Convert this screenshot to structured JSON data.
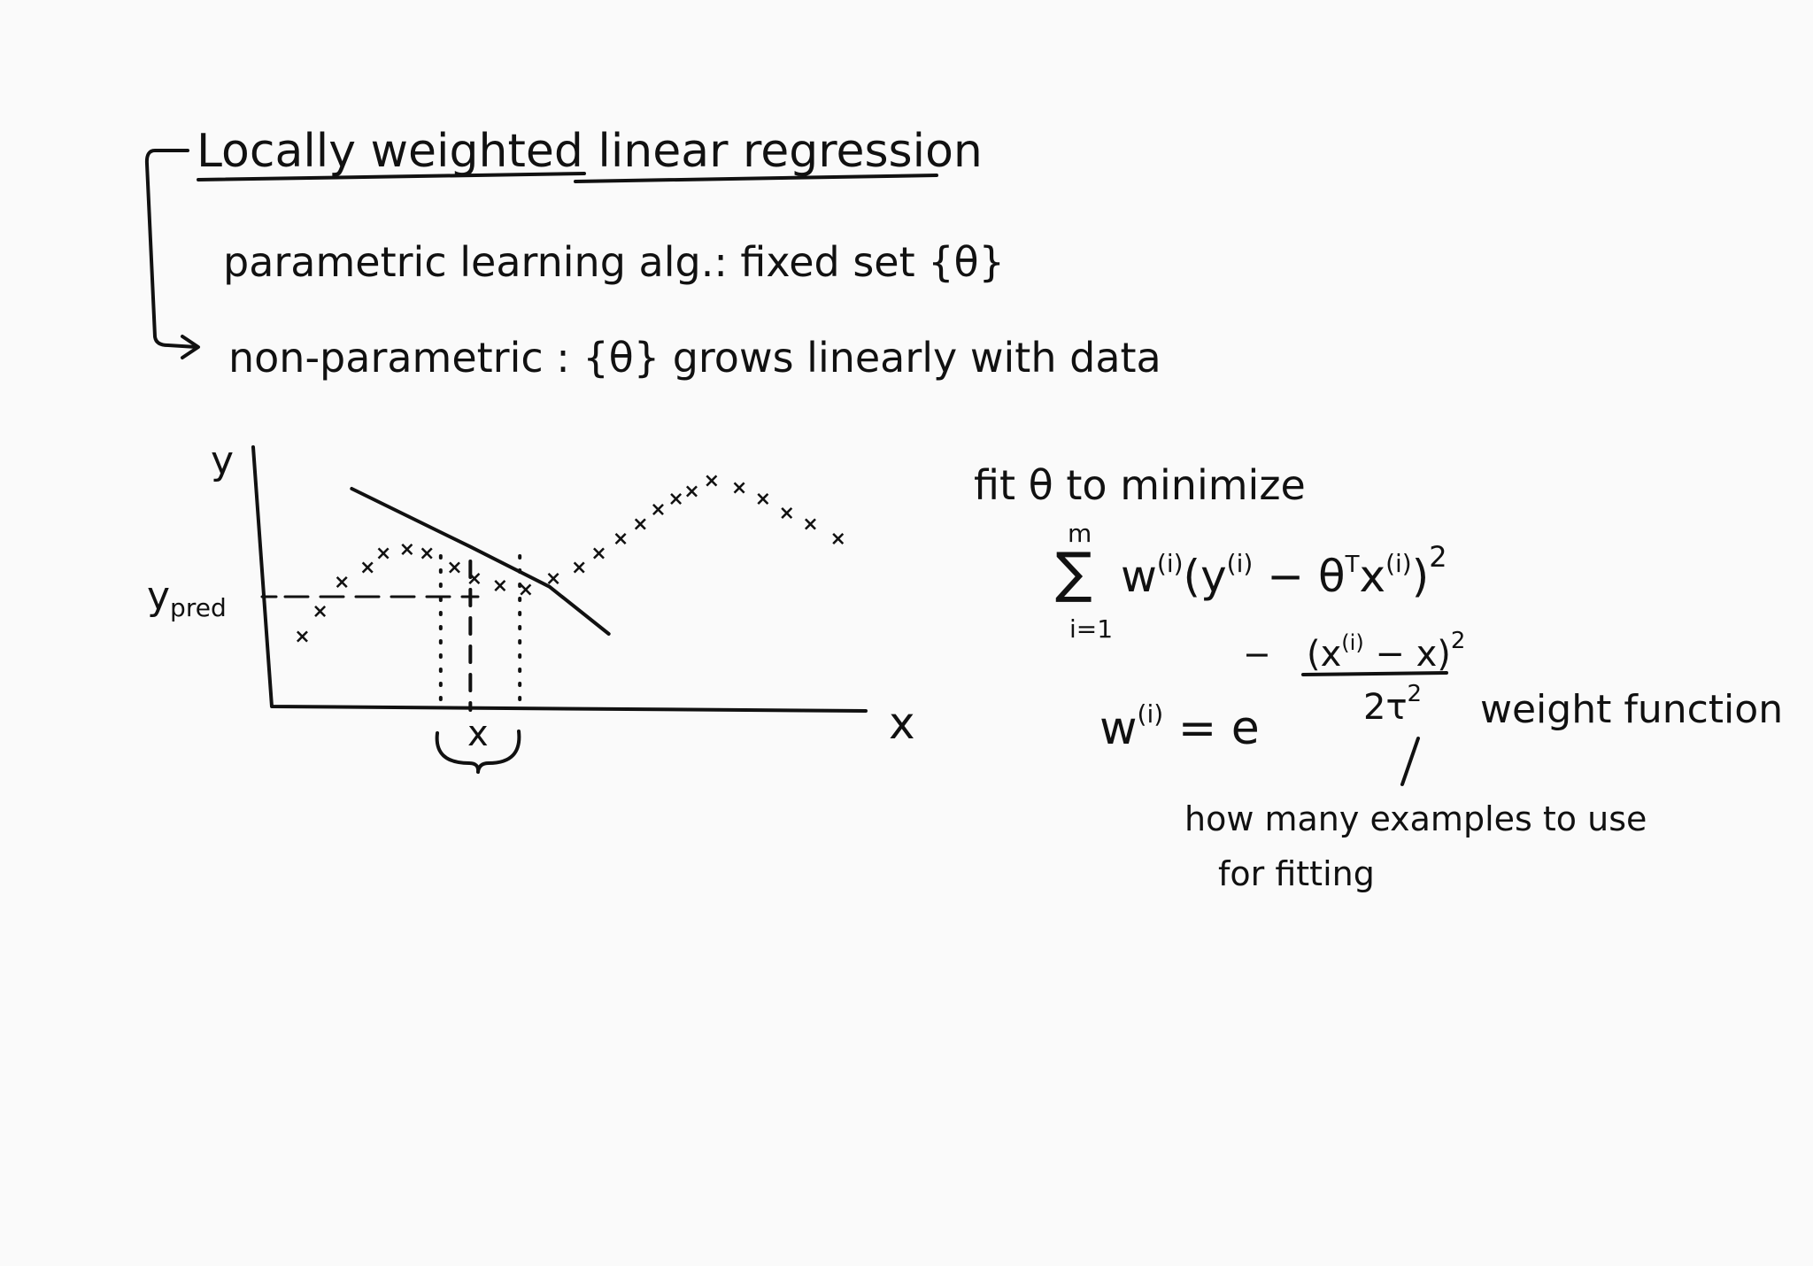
{
  "notes": {
    "title": "Locally weighted linear regression",
    "parametric": "parametric learning alg.: fixed set {θ}",
    "nonparametric": "non-parametric : {θ} grows linearly with data"
  },
  "plot": {
    "y_label": "y",
    "x_label": "x",
    "ypred_label": "y",
    "ypred_subscript": "pred",
    "query_label": "x"
  },
  "chart_data": {
    "type": "scatter",
    "title": "",
    "xlabel": "x",
    "ylabel": "y",
    "points": [
      [
        0.15,
        0.38
      ],
      [
        0.24,
        0.52
      ],
      [
        0.35,
        0.68
      ],
      [
        0.48,
        0.76
      ],
      [
        0.56,
        0.84
      ],
      [
        0.68,
        0.86
      ],
      [
        0.78,
        0.84
      ],
      [
        0.92,
        0.76
      ],
      [
        1.02,
        0.7
      ],
      [
        1.15,
        0.66
      ],
      [
        1.28,
        0.64
      ],
      [
        1.42,
        0.7
      ],
      [
        1.55,
        0.76
      ],
      [
        1.65,
        0.84
      ],
      [
        1.76,
        0.92
      ],
      [
        1.86,
        1.0
      ],
      [
        1.95,
        1.08
      ],
      [
        2.04,
        1.14
      ],
      [
        2.12,
        1.18
      ],
      [
        2.22,
        1.24
      ],
      [
        2.36,
        1.2
      ],
      [
        2.48,
        1.14
      ],
      [
        2.6,
        1.06
      ],
      [
        2.72,
        1.0
      ],
      [
        2.86,
        0.92
      ]
    ],
    "local_fit_line": [
      [
        0.4,
        1.2
      ],
      [
        1.0,
        0.88
      ],
      [
        1.4,
        0.66
      ],
      [
        1.7,
        0.4
      ]
    ],
    "query_x": 1.0,
    "weight_window": [
      0.85,
      1.25
    ],
    "ypred": 0.8
  },
  "formula": {
    "intro": "fit θ to minimize",
    "sum_upper": "m",
    "sum_lower": "i=1",
    "objective": "w",
    "obj_sup": "(i)",
    "obj_paren_open": "(",
    "obj_y": "y",
    "obj_y_sup": "(i)",
    "obj_minus": " − θ",
    "obj_theta_sup": "T",
    "obj_x": "x",
    "obj_x_sup": "(i)",
    "obj_paren_close": ")",
    "obj_power": "2",
    "weight_lhs": "w",
    "weight_lhs_sup": "(i)",
    "weight_eq": " = e",
    "exp_minus": "−",
    "exp_num": "(x",
    "exp_num_sup": "(i)",
    "exp_num_end": " − x)",
    "exp_num_pow": "2",
    "exp_den": "2τ",
    "exp_den_pow": "2",
    "weight_label": "weight function",
    "tau_note_1": "how many examples to use",
    "tau_note_2": "for fitting"
  }
}
